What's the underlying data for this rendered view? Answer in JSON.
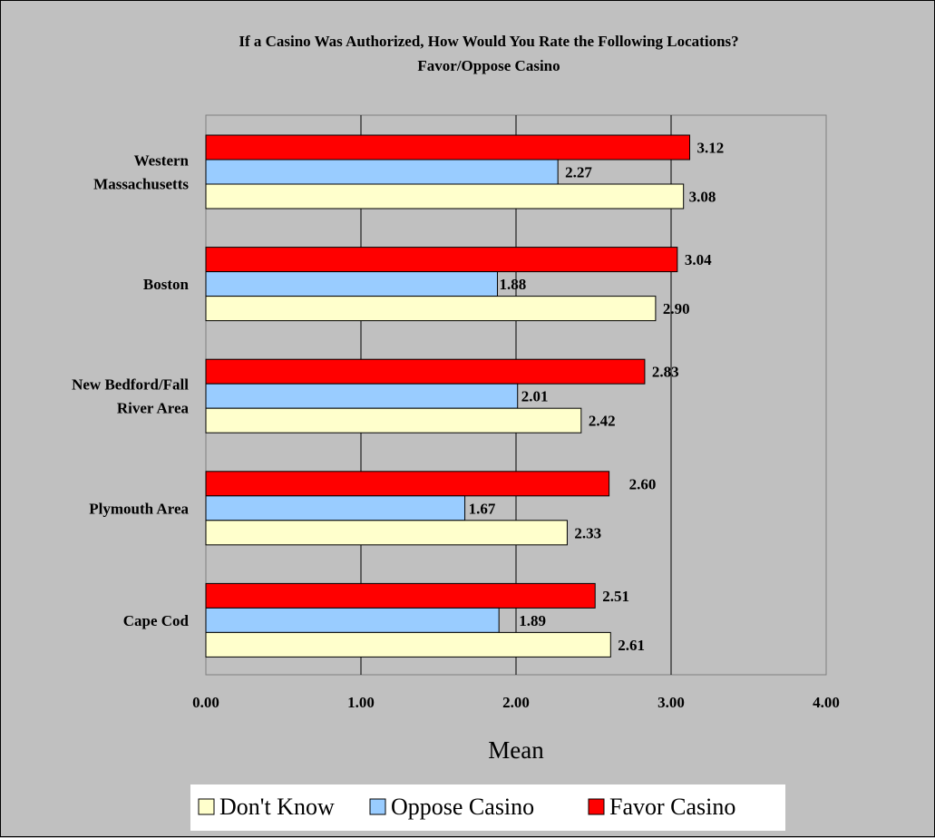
{
  "chart_data": {
    "type": "bar",
    "orientation": "horizontal",
    "title": "If a Casino Was Authorized, How Would You Rate the Following Locations?",
    "subtitle": "Favor/Oppose Casino",
    "xlabel": "Mean",
    "xlim": [
      0,
      4
    ],
    "xticks": [
      "0.00",
      "1.00",
      "2.00",
      "3.00",
      "4.00"
    ],
    "grid": true,
    "legend_position": "bottom",
    "categories": [
      [
        "Western",
        "Massachusetts"
      ],
      [
        "Boston"
      ],
      [
        "New Bedford/Fall",
        "River Area"
      ],
      [
        "Plymouth Area"
      ],
      [
        "Cape Cod"
      ]
    ],
    "series": [
      {
        "name": "Favor Casino",
        "color": "#ff0000",
        "values": [
          3.12,
          3.04,
          2.83,
          2.6,
          2.51
        ],
        "labels": [
          "3.12",
          "3.04",
          "2.83",
          "2.60",
          "2.51"
        ]
      },
      {
        "name": "Oppose Casino",
        "color": "#99ccff",
        "values": [
          2.27,
          1.88,
          2.01,
          1.67,
          1.89
        ],
        "labels": [
          "2.27",
          "1.88",
          "2.01",
          "1.67",
          "1.89"
        ]
      },
      {
        "name": "Don't Know",
        "color": "#ffffcc",
        "values": [
          3.08,
          2.9,
          2.42,
          2.33,
          2.61
        ],
        "labels": [
          "3.08",
          "2.90",
          "2.42",
          "2.33",
          "2.61"
        ]
      }
    ],
    "legend_order": [
      "Don't Know",
      "Oppose Casino",
      "Favor Casino"
    ]
  }
}
